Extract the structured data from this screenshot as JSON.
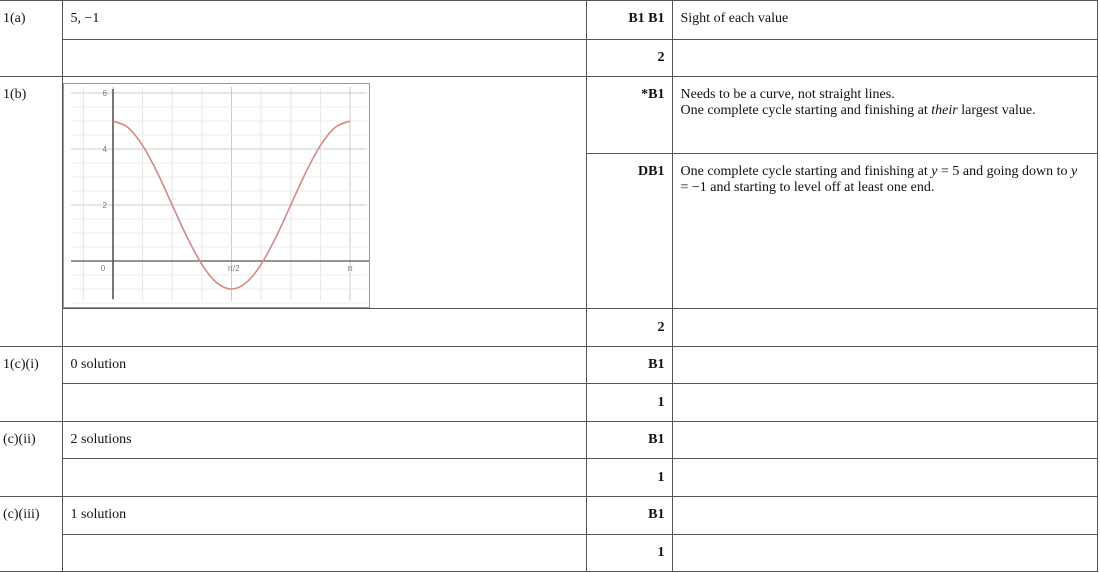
{
  "rows": {
    "q1a": {
      "label": "1(a)",
      "answer": "5, −1",
      "marks": "B1 B1",
      "guidance": "Sight of each value",
      "total": "2"
    },
    "q1b": {
      "label": "1(b)",
      "mark1": "*B1",
      "guidance1_line1": "Needs to be a curve, not straight lines.",
      "guidance1_pre": "One complete cycle starting and finishing at ",
      "guidance1_em": "their",
      "guidance1_post": " largest value.",
      "mark2": "DB1",
      "guidance2_a": "One complete cycle starting and finishing at ",
      "guidance2_y1": "y",
      "guidance2_b": " = 5 and going down to ",
      "guidance2_y2": "y",
      "guidance2_c": " = −1 and starting to level off at least one end.",
      "total": "2"
    },
    "q1ci": {
      "label": "1(c)(i)",
      "answer": "0 solution",
      "marks": "B1",
      "total": "1"
    },
    "q1cii": {
      "label": "(c)(ii)",
      "answer": "2 solutions",
      "marks": "B1",
      "total": "1"
    },
    "q1ciii": {
      "label": "(c)(iii)",
      "answer": "1 solution",
      "marks": "B1",
      "total": "1"
    }
  },
  "chart_data": {
    "type": "line",
    "x_tick_labels": [
      "0",
      "π/2",
      "π"
    ],
    "y_tick_labels": [
      "6",
      "4",
      "2"
    ],
    "xlim": [
      -0.6,
      3.4
    ],
    "ylim": [
      -1.6,
      6.2
    ],
    "grid": true,
    "curve_color": "#d48a8a",
    "x": [
      0,
      0.196,
      0.393,
      0.589,
      0.785,
      0.982,
      1.178,
      1.374,
      1.571,
      1.767,
      1.963,
      2.16,
      2.356,
      2.553,
      2.749,
      2.945,
      3.142
    ],
    "y": [
      5,
      4.772,
      4.121,
      3.148,
      2,
      0.852,
      -0.121,
      -0.772,
      -1,
      -0.772,
      -0.121,
      0.852,
      2,
      3.148,
      4.121,
      4.772,
      5
    ]
  }
}
